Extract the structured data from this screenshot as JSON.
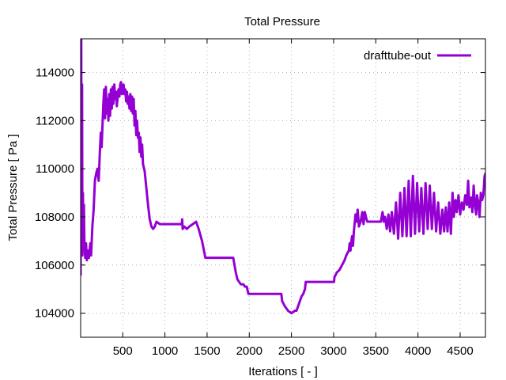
{
  "chart_data": {
    "type": "line",
    "title": "Total Pressure",
    "xlabel": "Iterations [ - ]",
    "ylabel": "Total Pressure [ Pa ]",
    "xlim": [
      1,
      4800
    ],
    "ylim": [
      103000,
      115400
    ],
    "xticks": [
      500,
      1000,
      1500,
      2000,
      2500,
      3000,
      3500,
      4000,
      4500
    ],
    "yticks": [
      104000,
      106000,
      108000,
      110000,
      112000,
      114000
    ],
    "grid": true,
    "legend_position": "top-right",
    "series": [
      {
        "name": "drafttube-out",
        "color": "#9400d3",
        "points": [
          [
            1,
            105600
          ],
          [
            8,
            115400
          ],
          [
            12,
            107200
          ],
          [
            18,
            113500
          ],
          [
            22,
            106400
          ],
          [
            28,
            109000
          ],
          [
            34,
            106800
          ],
          [
            40,
            108500
          ],
          [
            45,
            107000
          ],
          [
            55,
            106300
          ],
          [
            65,
            106900
          ],
          [
            75,
            106200
          ],
          [
            90,
            106600
          ],
          [
            100,
            106300
          ],
          [
            115,
            106900
          ],
          [
            125,
            106400
          ],
          [
            140,
            107600
          ],
          [
            155,
            108300
          ],
          [
            170,
            109500
          ],
          [
            185,
            109800
          ],
          [
            200,
            110000
          ],
          [
            215,
            109500
          ],
          [
            230,
            110800
          ],
          [
            240,
            111500
          ],
          [
            250,
            110900
          ],
          [
            260,
            111800
          ],
          [
            270,
            112700
          ],
          [
            280,
            113300
          ],
          [
            290,
            112100
          ],
          [
            300,
            113400
          ],
          [
            310,
            112300
          ],
          [
            320,
            112900
          ],
          [
            330,
            112000
          ],
          [
            340,
            113100
          ],
          [
            350,
            112200
          ],
          [
            360,
            113300
          ],
          [
            370,
            112500
          ],
          [
            380,
            113400
          ],
          [
            390,
            112700
          ],
          [
            400,
            113500
          ],
          [
            410,
            112900
          ],
          [
            420,
            113200
          ],
          [
            430,
            112600
          ],
          [
            440,
            113000
          ],
          [
            450,
            113300
          ],
          [
            460,
            113000
          ],
          [
            470,
            113500
          ],
          [
            480,
            113600
          ],
          [
            490,
            113100
          ],
          [
            500,
            113400
          ],
          [
            510,
            113500
          ],
          [
            520,
            113100
          ],
          [
            530,
            113300
          ],
          [
            540,
            112800
          ],
          [
            550,
            113200
          ],
          [
            560,
            112700
          ],
          [
            570,
            113000
          ],
          [
            580,
            112500
          ],
          [
            590,
            113100
          ],
          [
            600,
            112400
          ],
          [
            610,
            113000
          ],
          [
            620,
            112300
          ],
          [
            630,
            112900
          ],
          [
            640,
            111800
          ],
          [
            650,
            112400
          ],
          [
            660,
            111400
          ],
          [
            670,
            112000
          ],
          [
            680,
            111300
          ],
          [
            690,
            111500
          ],
          [
            700,
            110700
          ],
          [
            710,
            111300
          ],
          [
            720,
            110500
          ],
          [
            730,
            111000
          ],
          [
            740,
            110200
          ],
          [
            760,
            109900
          ],
          [
            780,
            109200
          ],
          [
            800,
            108500
          ],
          [
            820,
            107900
          ],
          [
            840,
            107600
          ],
          [
            860,
            107500
          ],
          [
            880,
            107600
          ],
          [
            900,
            107800
          ],
          [
            940,
            107700
          ],
          [
            1000,
            107700
          ],
          [
            1060,
            107700
          ],
          [
            1120,
            107700
          ],
          [
            1180,
            107700
          ],
          [
            1200,
            107700
          ],
          [
            1205,
            107900
          ],
          [
            1210,
            107500
          ],
          [
            1230,
            107600
          ],
          [
            1260,
            107500
          ],
          [
            1290,
            107600
          ],
          [
            1330,
            107700
          ],
          [
            1370,
            107800
          ],
          [
            1400,
            107500
          ],
          [
            1440,
            107000
          ],
          [
            1480,
            106300
          ],
          [
            1520,
            106300
          ],
          [
            1580,
            106300
          ],
          [
            1640,
            106300
          ],
          [
            1700,
            106300
          ],
          [
            1760,
            106300
          ],
          [
            1810,
            106300
          ],
          [
            1840,
            105700
          ],
          [
            1860,
            105400
          ],
          [
            1880,
            105300
          ],
          [
            1900,
            105200
          ],
          [
            1930,
            105200
          ],
          [
            1950,
            105100
          ],
          [
            1970,
            105100
          ],
          [
            1990,
            104800
          ],
          [
            2010,
            104800
          ],
          [
            2100,
            104800
          ],
          [
            2200,
            104800
          ],
          [
            2300,
            104800
          ],
          [
            2380,
            104800
          ],
          [
            2390,
            104500
          ],
          [
            2420,
            104300
          ],
          [
            2460,
            104100
          ],
          [
            2500,
            104000
          ],
          [
            2540,
            104100
          ],
          [
            2560,
            104100
          ],
          [
            2580,
            104300
          ],
          [
            2600,
            104500
          ],
          [
            2620,
            104700
          ],
          [
            2640,
            104800
          ],
          [
            2660,
            105000
          ],
          [
            2670,
            105300
          ],
          [
            2700,
            105300
          ],
          [
            2760,
            105300
          ],
          [
            2820,
            105300
          ],
          [
            2880,
            105300
          ],
          [
            2940,
            105300
          ],
          [
            2990,
            105300
          ],
          [
            3005,
            105300
          ],
          [
            3010,
            105500
          ],
          [
            3040,
            105700
          ],
          [
            3070,
            105800
          ],
          [
            3100,
            106000
          ],
          [
            3130,
            106200
          ],
          [
            3150,
            106400
          ],
          [
            3180,
            106600
          ],
          [
            3190,
            106900
          ],
          [
            3200,
            106600
          ],
          [
            3210,
            107000
          ],
          [
            3220,
            107200
          ],
          [
            3230,
            106800
          ],
          [
            3240,
            107400
          ],
          [
            3260,
            108100
          ],
          [
            3270,
            107800
          ],
          [
            3285,
            108300
          ],
          [
            3300,
            107600
          ],
          [
            3320,
            107800
          ],
          [
            3340,
            108200
          ],
          [
            3355,
            107700
          ],
          [
            3370,
            108200
          ],
          [
            3390,
            107900
          ],
          [
            3400,
            107800
          ],
          [
            3440,
            107800
          ],
          [
            3480,
            107800
          ],
          [
            3520,
            107800
          ],
          [
            3560,
            107800
          ],
          [
            3580,
            108200
          ],
          [
            3595,
            107800
          ],
          [
            3610,
            108000
          ],
          [
            3630,
            107500
          ],
          [
            3650,
            108100
          ],
          [
            3670,
            107400
          ],
          [
            3690,
            108200
          ],
          [
            3715,
            107300
          ],
          [
            3740,
            108600
          ],
          [
            3765,
            107100
          ],
          [
            3790,
            109000
          ],
          [
            3815,
            107200
          ],
          [
            3840,
            109200
          ],
          [
            3865,
            107200
          ],
          [
            3890,
            109500
          ],
          [
            3915,
            107200
          ],
          [
            3940,
            109700
          ],
          [
            3965,
            107300
          ],
          [
            3990,
            109400
          ],
          [
            4015,
            107400
          ],
          [
            4040,
            109200
          ],
          [
            4065,
            107300
          ],
          [
            4090,
            109400
          ],
          [
            4115,
            107500
          ],
          [
            4140,
            109300
          ],
          [
            4165,
            107500
          ],
          [
            4190,
            109000
          ],
          [
            4215,
            107400
          ],
          [
            4240,
            108600
          ],
          [
            4265,
            107300
          ],
          [
            4290,
            108300
          ],
          [
            4310,
            107400
          ],
          [
            4330,
            108400
          ],
          [
            4350,
            107400
          ],
          [
            4370,
            108600
          ],
          [
            4390,
            107300
          ],
          [
            4410,
            109000
          ],
          [
            4425,
            108000
          ],
          [
            4445,
            108700
          ],
          [
            4460,
            108200
          ],
          [
            4480,
            108900
          ],
          [
            4500,
            108100
          ],
          [
            4520,
            108600
          ],
          [
            4540,
            108300
          ],
          [
            4560,
            108900
          ],
          [
            4580,
            108500
          ],
          [
            4595,
            109500
          ],
          [
            4610,
            108400
          ],
          [
            4630,
            108800
          ],
          [
            4645,
            108200
          ],
          [
            4660,
            109300
          ],
          [
            4675,
            108500
          ],
          [
            4690,
            108100
          ],
          [
            4700,
            108900
          ],
          [
            4715,
            108600
          ],
          [
            4730,
            108000
          ],
          [
            4745,
            109000
          ],
          [
            4760,
            108700
          ],
          [
            4775,
            108900
          ],
          [
            4790,
            109700
          ],
          [
            4800,
            109800
          ]
        ]
      }
    ]
  }
}
